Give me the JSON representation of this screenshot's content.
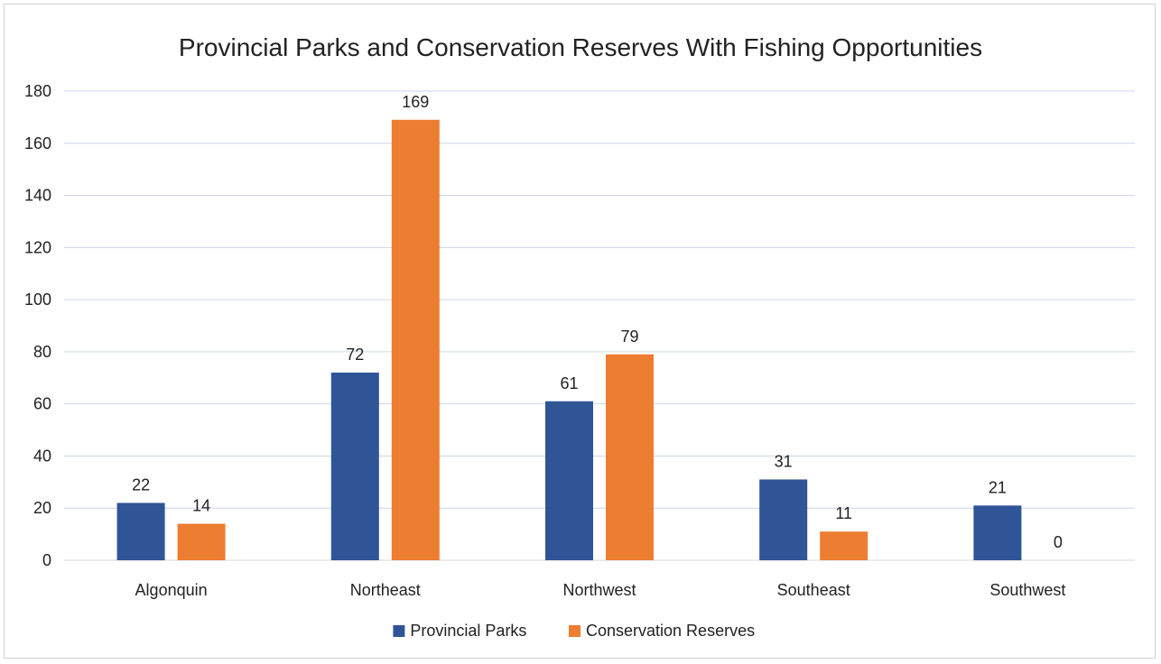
{
  "chart_data": {
    "type": "bar",
    "title": "Provincial Parks and Conservation Reserves With Fishing Opportunities",
    "categories": [
      "Algonquin",
      "Northeast",
      "Northwest",
      "Southeast",
      "Southwest"
    ],
    "series": [
      {
        "name": "Provincial Parks",
        "values": [
          22,
          72,
          61,
          31,
          21
        ],
        "color": "#2F5597"
      },
      {
        "name": "Conservation Reserves",
        "values": [
          14,
          169,
          79,
          11,
          0
        ],
        "color": "#ED7D31"
      }
    ],
    "ylim": [
      0,
      180
    ],
    "yticks": [
      0,
      20,
      40,
      60,
      80,
      100,
      120,
      140,
      160,
      180
    ],
    "grid": true,
    "legend": "bottom",
    "xlabel": "",
    "ylabel": ""
  }
}
